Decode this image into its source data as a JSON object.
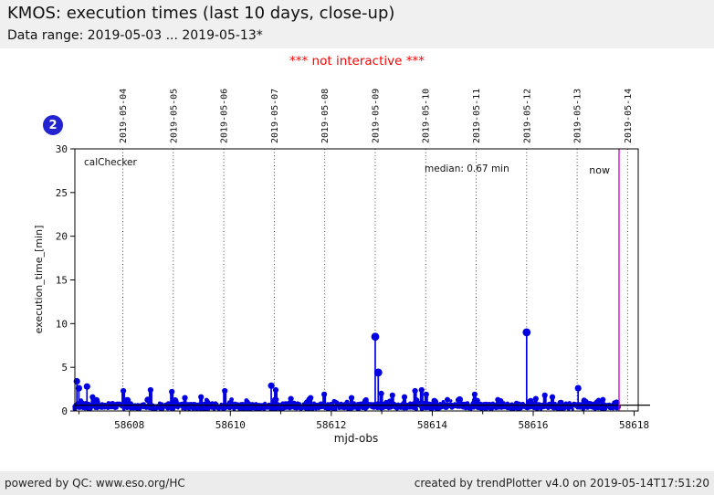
{
  "header": {
    "title": "KMOS: execution times (last 10 days, close-up)",
    "subtitle": "Data range: 2019-05-03 ... 2019-05-13*"
  },
  "note": {
    "text": "*** not interactive ***",
    "color": "#ff0000"
  },
  "badge": {
    "value": "2",
    "color": "#2424d0"
  },
  "footer": {
    "left": "powered by QC: www.eso.org/HC",
    "right": "created by trendPlotter v4.0 on 2019-05-14T17:51:20"
  },
  "chart_data": {
    "type": "scatter",
    "series_label": "calChecker",
    "median": 0.67,
    "median_label": "median: 0.67 min",
    "now_label": "now",
    "now_mjd": 58617.7,
    "xlabel": "mjd-obs",
    "ylabel": "execution_time_[min]",
    "xlim": [
      58606.92,
      58618.08
    ],
    "ylim": [
      0,
      30
    ],
    "y_ticks": [
      0,
      5,
      10,
      15,
      20,
      25,
      30
    ],
    "x_ticks_major": [
      58608,
      58610,
      58612,
      58614,
      58616,
      58618
    ],
    "x_ticks_minor": [
      58607,
      58609,
      58611,
      58613,
      58615,
      58617
    ],
    "date_gridlines": [
      {
        "mjd": 58607.87,
        "label": "2019-05-04"
      },
      {
        "mjd": 58608.87,
        "label": "2019-05-05"
      },
      {
        "mjd": 58609.87,
        "label": "2019-05-06"
      },
      {
        "mjd": 58610.87,
        "label": "2019-05-07"
      },
      {
        "mjd": 58611.87,
        "label": "2019-05-08"
      },
      {
        "mjd": 58612.87,
        "label": "2019-05-09"
      },
      {
        "mjd": 58613.87,
        "label": "2019-05-10"
      },
      {
        "mjd": 58614.87,
        "label": "2019-05-11"
      },
      {
        "mjd": 58615.87,
        "label": "2019-05-12"
      },
      {
        "mjd": 58616.87,
        "label": "2019-05-13"
      },
      {
        "mjd": 58617.87,
        "label": "2019-05-14"
      }
    ],
    "band": {
      "from": 58606.92,
      "to": 58617.7,
      "typical_min": 0.2,
      "typical_max": 1.2
    },
    "peaks": [
      [
        58606.96,
        3.4
      ],
      [
        58607.0,
        2.6
      ],
      [
        58607.16,
        2.8
      ],
      [
        58607.27,
        1.6
      ],
      [
        58607.88,
        2.3
      ],
      [
        58608.42,
        2.4
      ],
      [
        58608.84,
        2.2
      ],
      [
        58609.1,
        1.5
      ],
      [
        58609.42,
        1.6
      ],
      [
        58609.89,
        2.3
      ],
      [
        58610.81,
        2.9
      ],
      [
        58610.9,
        2.4
      ],
      [
        58611.2,
        1.4
      ],
      [
        58611.59,
        1.5
      ],
      [
        58611.86,
        1.9
      ],
      [
        58612.4,
        1.5
      ],
      [
        58612.87,
        8.5
      ],
      [
        58612.93,
        4.4
      ],
      [
        58612.99,
        2.0
      ],
      [
        58613.21,
        1.8
      ],
      [
        58613.45,
        1.6
      ],
      [
        58613.66,
        2.3
      ],
      [
        58613.79,
        2.4
      ],
      [
        58613.88,
        1.9
      ],
      [
        58614.3,
        1.3
      ],
      [
        58614.84,
        1.9
      ],
      [
        58615.3,
        1.3
      ],
      [
        58615.87,
        9.0
      ],
      [
        58616.05,
        1.4
      ],
      [
        58616.23,
        1.8
      ],
      [
        58616.38,
        1.6
      ],
      [
        58616.89,
        2.6
      ],
      [
        58617.38,
        1.3
      ],
      [
        58617.65,
        1.0
      ]
    ],
    "colors": {
      "points": "#0000e0",
      "median_line": "#000000",
      "now_line": "#c800c8",
      "grid": "#333333"
    }
  }
}
